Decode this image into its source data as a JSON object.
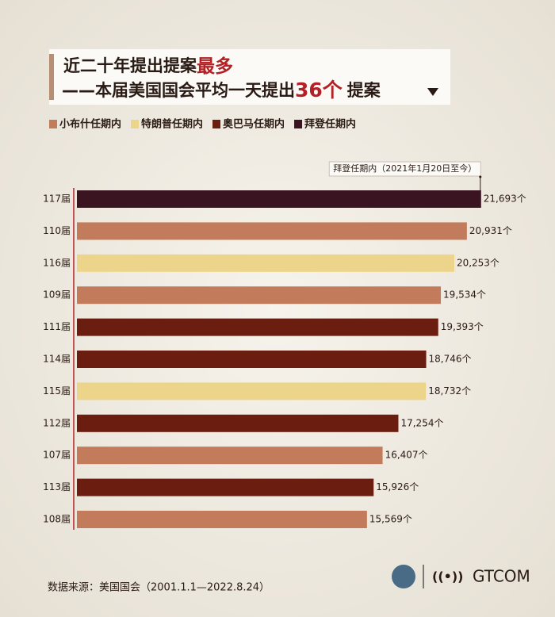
{
  "chart_data": {
    "type": "bar",
    "orientation": "horizontal",
    "title": [
      "近二十年提出提案",
      "最多"
    ],
    "subtitle": [
      "——本届美国国会平均一天提出",
      "36个",
      "提案"
    ],
    "annotation": "拜登任期内（2021年1月20日至今）",
    "source": "数据来源：美国国会（2001.1.1—2022.8.24）",
    "logo": "GTCOM",
    "categories": [
      "117届",
      "110届",
      "116届",
      "109届",
      "111届",
      "114届",
      "115届",
      "112届",
      "107届",
      "113届",
      "108届"
    ],
    "xlim": [
      0,
      22000
    ],
    "series": [
      {
        "name": "小布什任期内",
        "color": "#c27c5b",
        "values": [
          null,
          20931,
          null,
          19534,
          null,
          null,
          null,
          null,
          16407,
          null,
          15569
        ],
        "value_labels": [
          null,
          "20,931个",
          null,
          "19,534个",
          null,
          null,
          null,
          null,
          "16,407个",
          null,
          "15,569个"
        ]
      },
      {
        "name": "特朗普任期内",
        "color": "#ecd58a",
        "values": [
          null,
          null,
          20253,
          null,
          null,
          null,
          18732,
          null,
          null,
          null,
          null
        ],
        "value_labels": [
          null,
          null,
          "20,253个",
          null,
          null,
          null,
          "18,732个",
          null,
          null,
          null,
          null
        ]
      },
      {
        "name": "奥巴马任期内",
        "color": "#6b1d10",
        "values": [
          null,
          null,
          null,
          null,
          19393,
          18746,
          null,
          17254,
          null,
          15926,
          null
        ],
        "value_labels": [
          null,
          null,
          null,
          null,
          "19,393个",
          "18,746个",
          null,
          "17,254个",
          null,
          "15,926个",
          null
        ]
      },
      {
        "name": "拜登任期内",
        "color": "#3b1422",
        "values": [
          21693,
          null,
          null,
          null,
          null,
          null,
          null,
          null,
          null,
          null,
          null
        ],
        "value_labels": [
          "21,693个",
          null,
          null,
          null,
          null,
          null,
          null,
          null,
          null,
          null,
          null
        ]
      }
    ]
  }
}
